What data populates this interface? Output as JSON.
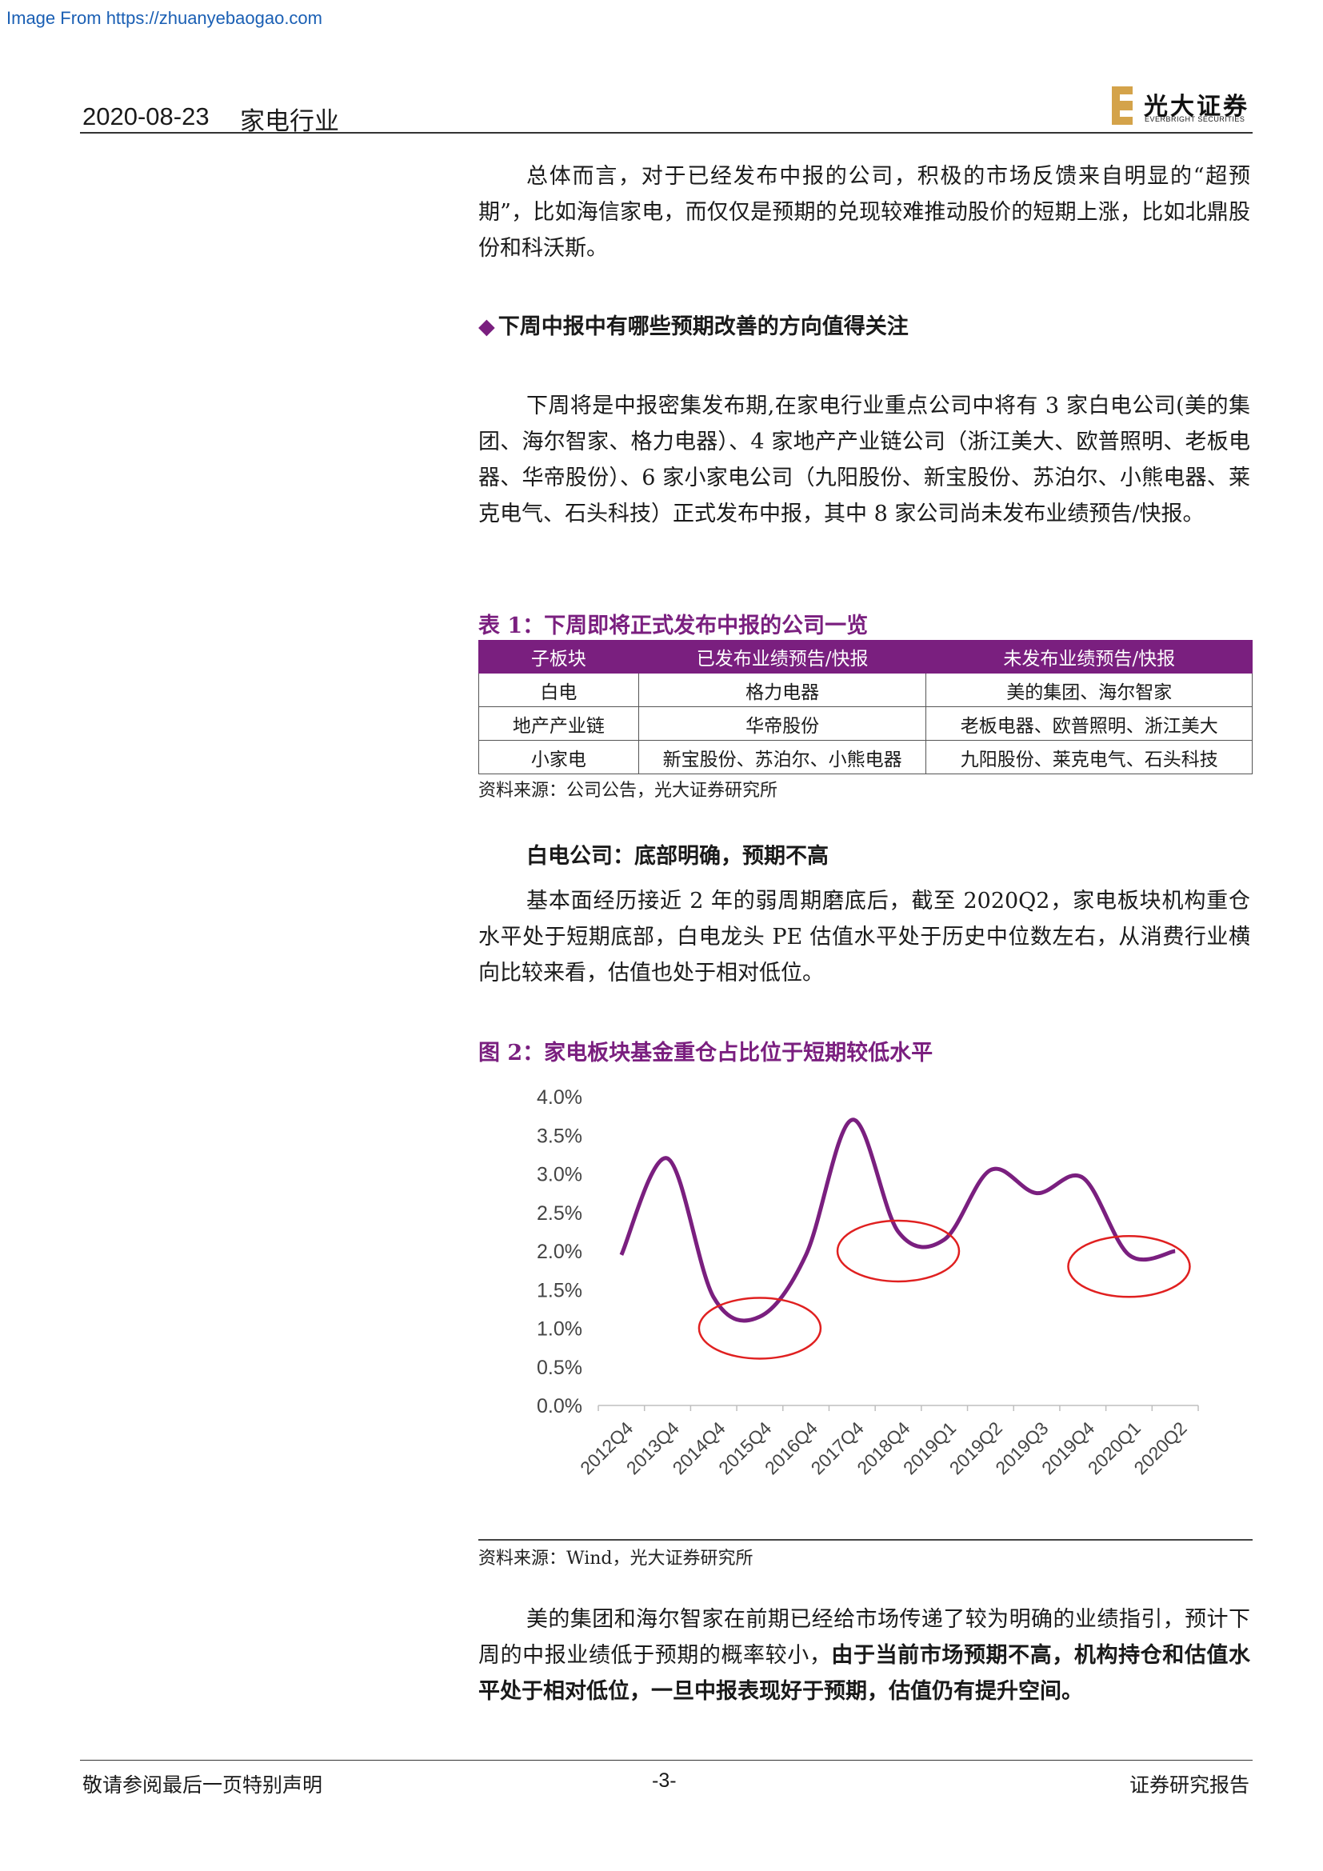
{
  "watermark": "Image From https://zhuanyebaogao.com",
  "header": {
    "date": "2020-08-23",
    "industry": "家电行业",
    "logo_cn": "光大证券",
    "logo_en": "EVERBRIGHT SECURITIES"
  },
  "para1": "总体而言，对于已经发布中报的公司，积极的市场反馈来自明显的“超预期”，比如海信家电，而仅仅是预期的兑现较难推动股价的短期上涨，比如北鼎股份和科沃斯。",
  "section_heading": "下周中报中有哪些预期改善的方向值得关注",
  "para2": "下周将是中报密集发布期,在家电行业重点公司中将有 3 家白电公司(美的集团、海尔智家、格力电器）、4 家地产产业链公司（浙江美大、欧普照明、老板电器、华帝股份）、6 家小家电公司（九阳股份、新宝股份、苏泊尔、小熊电器、莱克电气、石头科技）正式发布中报，其中 8 家公司尚未发布业绩预告/快报。",
  "table": {
    "caption": "表 1：下周即将正式发布中报的公司一览",
    "headers": [
      "子板块",
      "已发布业绩预告/快报",
      "未发布业绩预告/快报"
    ],
    "rows": [
      [
        "白电",
        "格力电器",
        "美的集团、海尔智家"
      ],
      [
        "地产产业链",
        "华帝股份",
        "老板电器、欧普照明、浙江美大"
      ],
      [
        "小家电",
        "新宝股份、苏泊尔、小熊电器",
        "九阳股份、莱克电气、石头科技"
      ]
    ],
    "source": "资料来源：公司公告，光大证券研究所"
  },
  "subheading": "白电公司：底部明确，预期不高",
  "para3": "基本面经历接近 2 年的弱周期磨底后，截至 2020Q2，家电板块机构重仓水平处于短期底部，白电龙头 PE 估值水平处于历史中位数左右，从消费行业横向比较来看，估值也处于相对低位。",
  "figure": {
    "caption": "图 2：家电板块基金重仓占比位于短期较低水平",
    "source": "资料来源：Wind，光大证券研究所"
  },
  "chart_data": {
    "type": "line",
    "categories": [
      "2012Q4",
      "2013Q4",
      "2014Q4",
      "2015Q4",
      "2016Q4",
      "2017Q4",
      "2018Q4",
      "2019Q1",
      "2019Q2",
      "2019Q3",
      "2019Q4",
      "2020Q1",
      "2020Q2"
    ],
    "series": [
      {
        "values": [
          1.95,
          3.2,
          1.4,
          1.15,
          1.95,
          3.7,
          2.25,
          2.15,
          3.05,
          2.75,
          2.95,
          1.95,
          2.0
        ]
      }
    ],
    "y_ticks": [
      "0.0%",
      "0.5%",
      "1.0%",
      "1.5%",
      "2.0%",
      "2.5%",
      "3.0%",
      "3.5%",
      "4.0%"
    ],
    "ylim": [
      0,
      4
    ],
    "series_color": "#7a1f7f",
    "highlight_color": "#e02020",
    "highlights": [
      {
        "category": "2015Q4",
        "value": 1.0
      },
      {
        "category": "2018Q4",
        "value": 2.0
      },
      {
        "category": "2020Q1",
        "value": 1.8
      }
    ]
  },
  "para4_normal": "美的集团和海尔智家在前期已经给市场传递了较为明确的业绩指引，预计下周的中报业绩低于预期的概率较小，",
  "para4_bold": "由于当前市场预期不高，机构持仓和估值水平处于相对低位，一旦中报表现好于预期，估值仍有提升空间。",
  "footer": {
    "left": "敬请参阅最后一页特别声明",
    "center": "-3-",
    "right": "证券研究报告"
  }
}
